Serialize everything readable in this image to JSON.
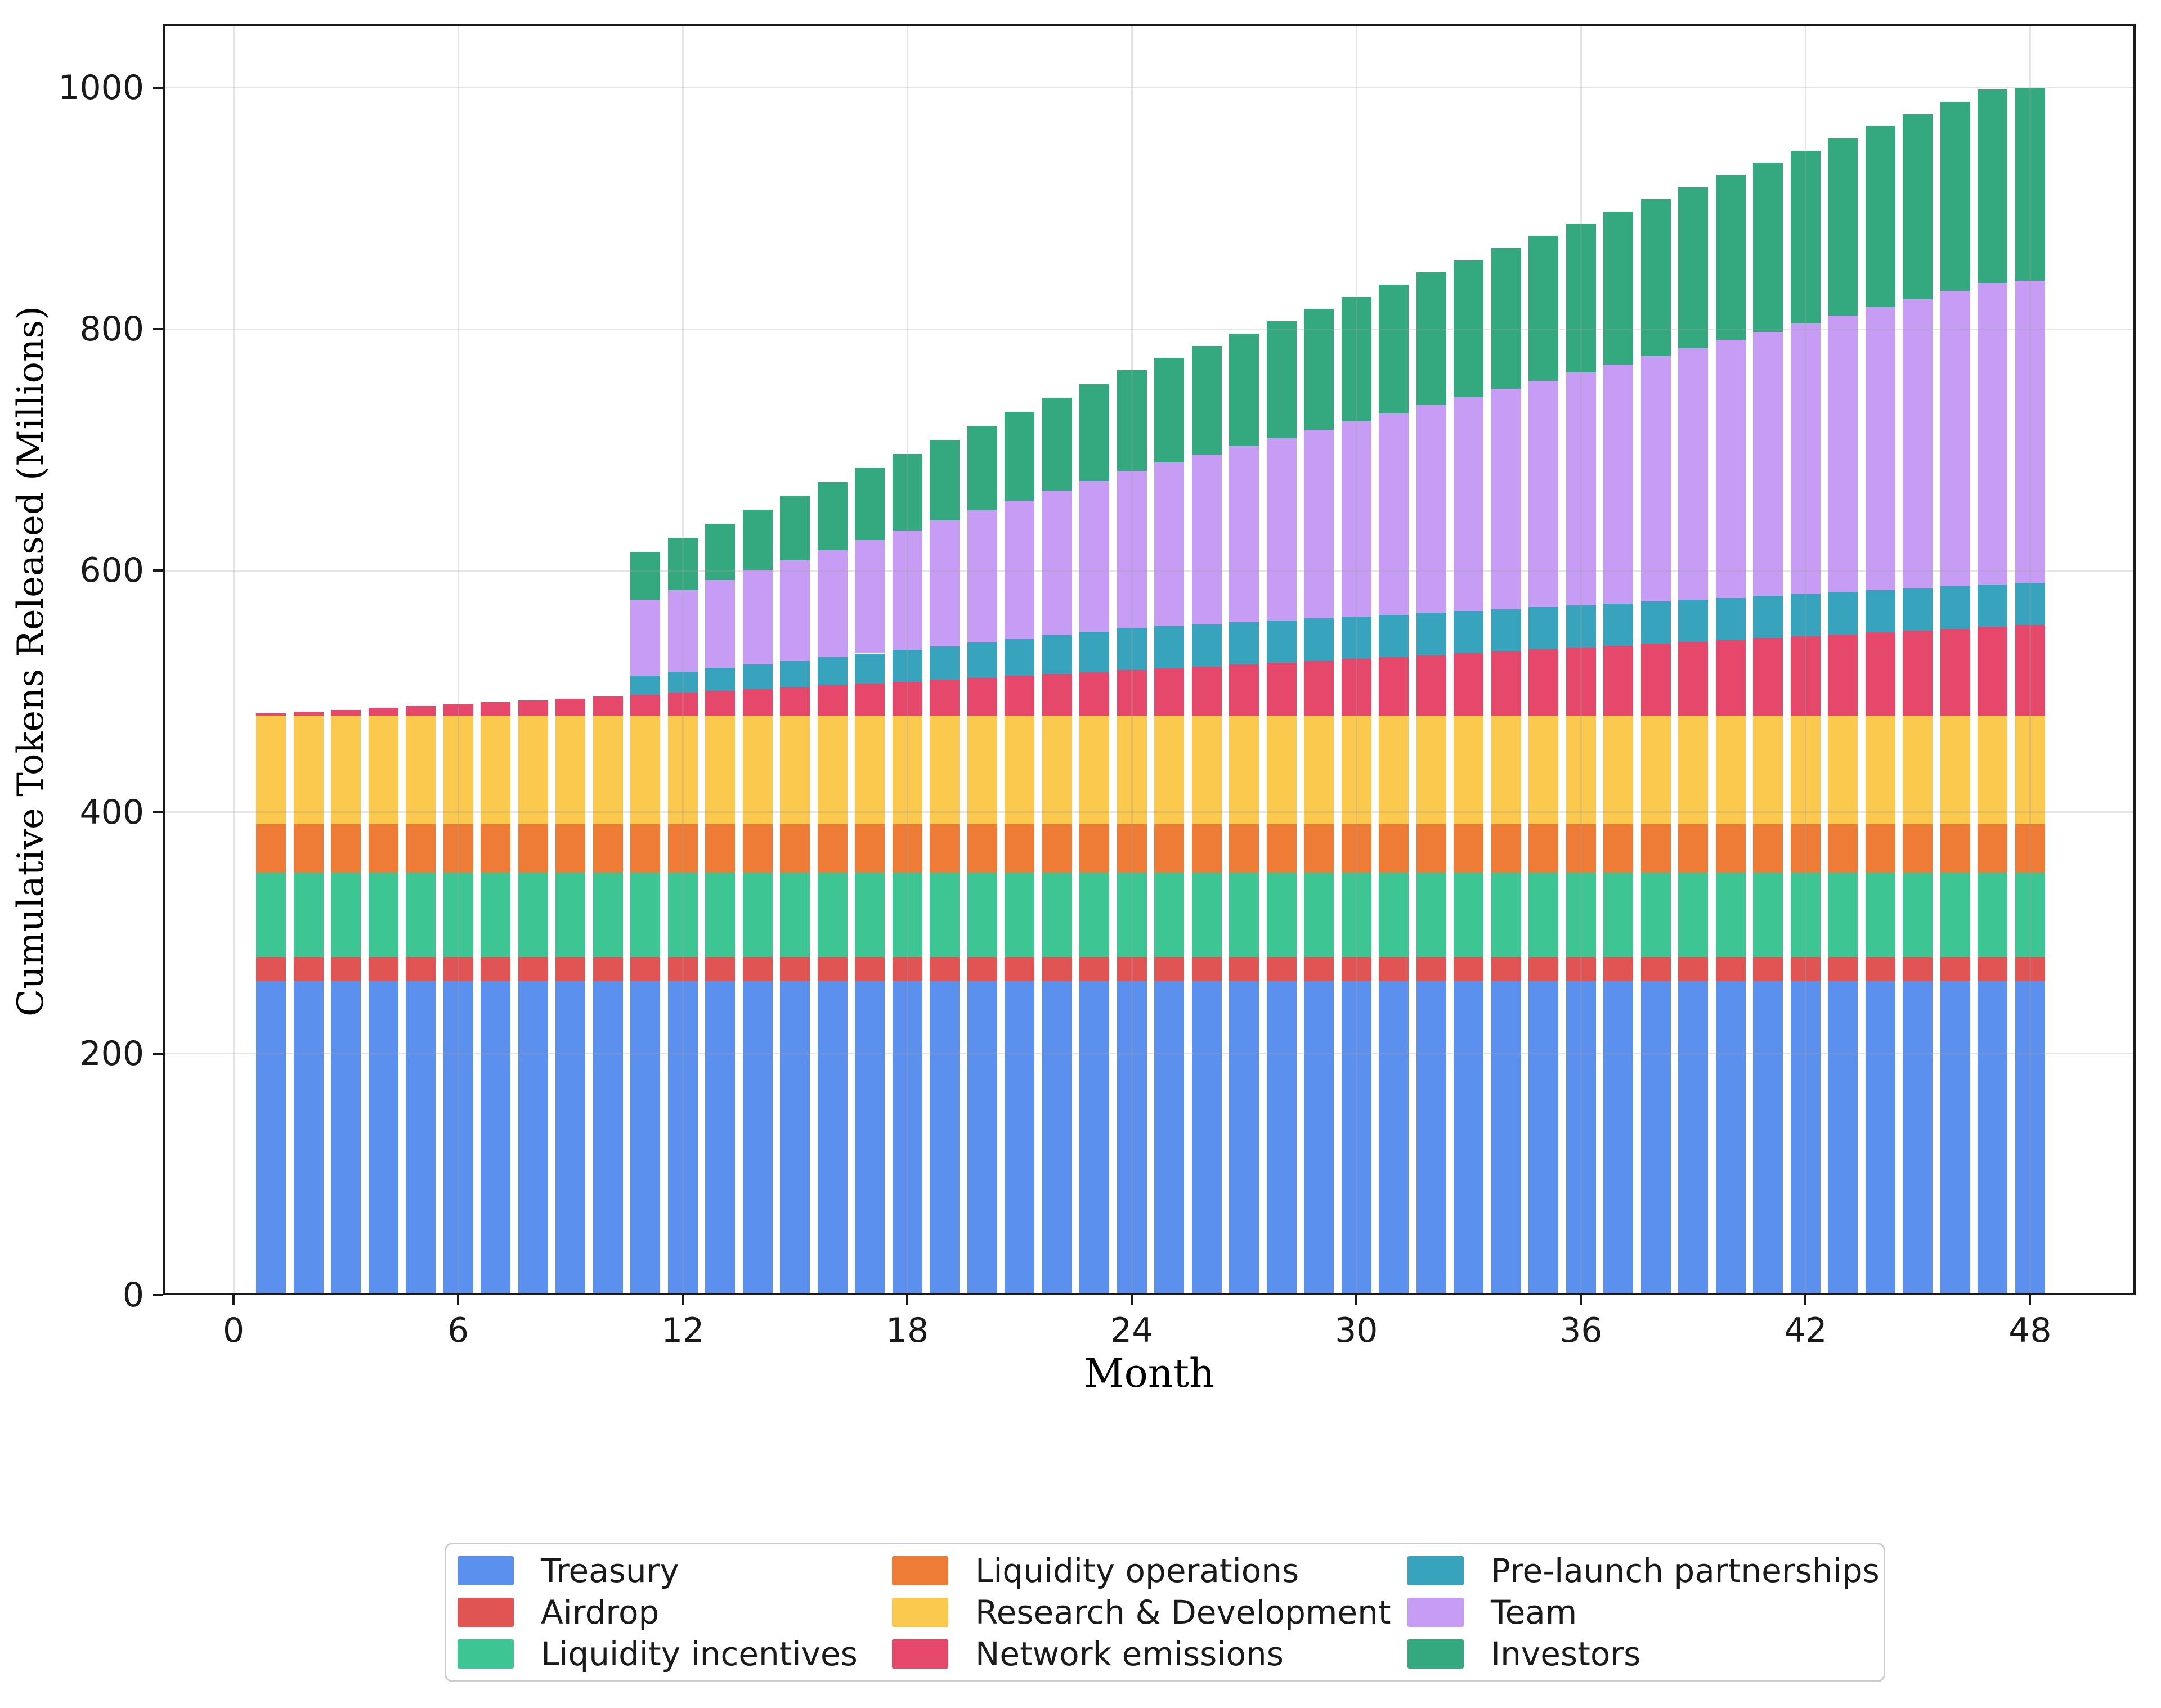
{
  "axes": {
    "xlabel": "Month",
    "ylabel": "Cumulative Tokens Released (Millions)"
  },
  "chart_data": {
    "type": "bar",
    "stacked": true,
    "title": "",
    "xlabel": "Month",
    "ylabel": "Cumulative Tokens Released (Millions)",
    "grid": true,
    "legend_position": "below",
    "xlim": [
      -1.88,
      50.82
    ],
    "ylim": [
      0,
      1053
    ],
    "x_ticks": [
      0,
      6,
      12,
      18,
      24,
      30,
      36,
      42,
      48
    ],
    "y_ticks": [
      0,
      200,
      400,
      600,
      800,
      1000
    ],
    "x": [
      1,
      2,
      3,
      4,
      5,
      6,
      7,
      8,
      9,
      10,
      11,
      12,
      13,
      14,
      15,
      16,
      17,
      18,
      19,
      20,
      21,
      22,
      23,
      24,
      25,
      26,
      27,
      28,
      29,
      30,
      31,
      32,
      33,
      34,
      35,
      36,
      37,
      38,
      39,
      40,
      41,
      42,
      43,
      44,
      45,
      46,
      47,
      48
    ],
    "bar_total_at_month_48": 1000,
    "series": [
      {
        "name": "Treasury",
        "color": "#5C90EE",
        "values": [
          260,
          260,
          260,
          260,
          260,
          260,
          260,
          260,
          260,
          260,
          260,
          260,
          260,
          260,
          260,
          260,
          260,
          260,
          260,
          260,
          260,
          260,
          260,
          260,
          260,
          260,
          260,
          260,
          260,
          260,
          260,
          260,
          260,
          260,
          260,
          260,
          260,
          260,
          260,
          260,
          260,
          260,
          260,
          260,
          260,
          260,
          260,
          260
        ]
      },
      {
        "name": "Airdrop",
        "color": "#E15454",
        "values": [
          20,
          20,
          20,
          20,
          20,
          20,
          20,
          20,
          20,
          20,
          20,
          20,
          20,
          20,
          20,
          20,
          20,
          20,
          20,
          20,
          20,
          20,
          20,
          20,
          20,
          20,
          20,
          20,
          20,
          20,
          20,
          20,
          20,
          20,
          20,
          20,
          20,
          20,
          20,
          20,
          20,
          20,
          20,
          20,
          20,
          20,
          20,
          20
        ]
      },
      {
        "name": "Liquidity incentives",
        "color": "#3DC594",
        "values": [
          70,
          70,
          70,
          70,
          70,
          70,
          70,
          70,
          70,
          70,
          70,
          70,
          70,
          70,
          70,
          70,
          70,
          70,
          70,
          70,
          70,
          70,
          70,
          70,
          70,
          70,
          70,
          70,
          70,
          70,
          70,
          70,
          70,
          70,
          70,
          70,
          70,
          70,
          70,
          70,
          70,
          70,
          70,
          70,
          70,
          70,
          70,
          70
        ]
      },
      {
        "name": "Liquidity operations",
        "color": "#EE7C37",
        "values": [
          40,
          40,
          40,
          40,
          40,
          40,
          40,
          40,
          40,
          40,
          40,
          40,
          40,
          40,
          40,
          40,
          40,
          40,
          40,
          40,
          40,
          40,
          40,
          40,
          40,
          40,
          40,
          40,
          40,
          40,
          40,
          40,
          40,
          40,
          40,
          40,
          40,
          40,
          40,
          40,
          40,
          40,
          40,
          40,
          40,
          40,
          40,
          40
        ]
      },
      {
        "name": "Research & Development",
        "color": "#FAC94E",
        "values": [
          90,
          90,
          90,
          90,
          90,
          90,
          90,
          90,
          90,
          90,
          90,
          90,
          90,
          90,
          90,
          90,
          90,
          90,
          90,
          90,
          90,
          90,
          90,
          90,
          90,
          90,
          90,
          90,
          90,
          90,
          90,
          90,
          90,
          90,
          90,
          90,
          90,
          90,
          90,
          90,
          90,
          90,
          90,
          90,
          90,
          90,
          90,
          90
        ]
      },
      {
        "name": "Network emissions",
        "color": "#E6486B",
        "values": [
          1.6,
          3.1,
          4.7,
          6.3,
          7.8,
          9.4,
          10.9,
          12.5,
          14.1,
          15.6,
          17.2,
          18.8,
          20.3,
          21.9,
          23.4,
          25.0,
          26.6,
          28.1,
          29.7,
          31.3,
          32.8,
          34.4,
          35.9,
          37.5,
          39.1,
          40.6,
          42.2,
          43.8,
          45.3,
          46.9,
          48.4,
          50.0,
          51.6,
          53.1,
          54.7,
          56.3,
          57.8,
          59.4,
          60.9,
          62.5,
          64.1,
          65.6,
          67.2,
          68.8,
          70.3,
          71.9,
          73.4,
          75.0
        ]
      },
      {
        "name": "Pre-launch partnerships",
        "color": "#38A3BD",
        "values": [
          0,
          0,
          0,
          0,
          0,
          0,
          0,
          0,
          0,
          0,
          16.0,
          17.5,
          19.0,
          20.4,
          21.9,
          23.3,
          24.8,
          26.3,
          27.7,
          29.2,
          30.6,
          32.1,
          33.5,
          35.0,
          35.0,
          35.0,
          35.0,
          35.0,
          35.0,
          35.0,
          35.0,
          35.0,
          35.0,
          35.0,
          35.0,
          35.0,
          35.0,
          35.0,
          35.0,
          35.0,
          35.0,
          35.0,
          35.0,
          35.0,
          35.0,
          35.0,
          35.0,
          35.0
        ]
      },
      {
        "name": "Team",
        "color": "#C69CF4",
        "values": [
          0,
          0,
          0,
          0,
          0,
          0,
          0,
          0,
          0,
          0,
          62.5,
          67.7,
          72.9,
          78.1,
          83.3,
          88.5,
          93.8,
          99.0,
          104.2,
          109.4,
          114.6,
          119.8,
          125.0,
          130.2,
          135.4,
          140.6,
          145.8,
          151.0,
          156.3,
          161.5,
          166.7,
          171.9,
          177.1,
          182.3,
          187.5,
          192.7,
          197.9,
          203.1,
          208.3,
          213.5,
          218.8,
          224.0,
          229.2,
          234.4,
          239.6,
          244.8,
          250.0,
          250.0
        ]
      },
      {
        "name": "Investors",
        "color": "#34A87E",
        "values": [
          0,
          0,
          0,
          0,
          0,
          0,
          0,
          0,
          0,
          0,
          40.0,
          43.3,
          46.7,
          50.0,
          53.3,
          56.7,
          60.0,
          63.3,
          66.7,
          70.0,
          73.3,
          76.7,
          80.0,
          83.3,
          86.7,
          90.0,
          93.3,
          96.7,
          100.0,
          103.3,
          106.7,
          110.0,
          113.3,
          116.7,
          120.0,
          123.3,
          126.7,
          130.0,
          133.3,
          136.7,
          140.0,
          143.3,
          146.7,
          150.0,
          153.3,
          156.7,
          160.0,
          160.0
        ]
      }
    ]
  },
  "legend": {
    "items": [
      {
        "label": "Treasury"
      },
      {
        "label": "Airdrop"
      },
      {
        "label": "Liquidity incentives"
      },
      {
        "label": "Liquidity operations"
      },
      {
        "label": "Research & Development"
      },
      {
        "label": "Network emissions"
      },
      {
        "label": "Pre-launch partnerships"
      },
      {
        "label": "Team"
      },
      {
        "label": "Investors"
      }
    ]
  }
}
